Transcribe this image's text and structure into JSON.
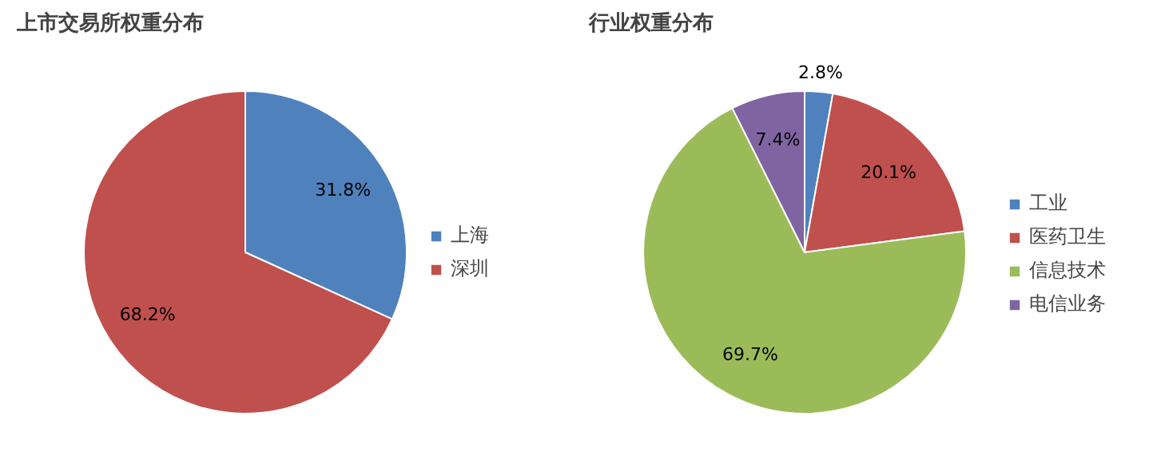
{
  "chart_data": [
    {
      "type": "pie",
      "title": "上市交易所权重分布",
      "categories": [
        "上海",
        "深圳"
      ],
      "values": [
        31.8,
        68.2
      ],
      "colors": [
        "#4f81bd",
        "#c0504d"
      ],
      "value_labels": [
        "31.8%",
        "68.2%"
      ],
      "legend": "right"
    },
    {
      "type": "pie",
      "title": "行业权重分布",
      "categories": [
        "工业",
        "医药卫生",
        "信息技术",
        "电信业务"
      ],
      "values": [
        2.8,
        20.1,
        69.7,
        7.4
      ],
      "colors": [
        "#4f81bd",
        "#c0504d",
        "#9bbb59",
        "#8064a2"
      ],
      "value_labels": [
        "2.8%",
        "20.1%",
        "69.7%",
        "7.4%"
      ],
      "legend": "right"
    }
  ]
}
